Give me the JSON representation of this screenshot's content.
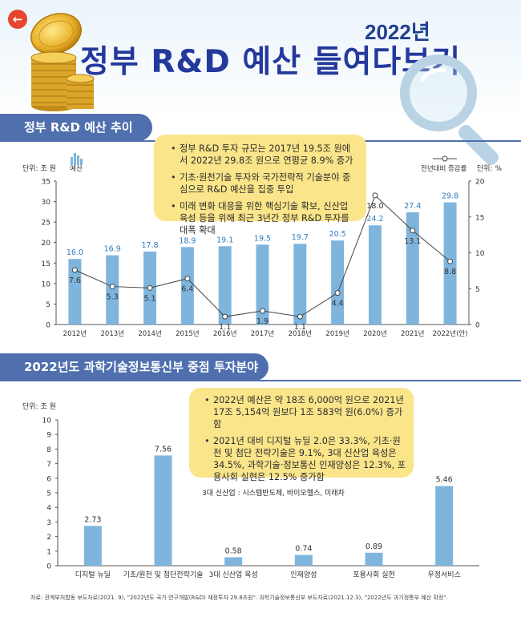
{
  "header": {
    "back_icon": "arrow-left-icon",
    "year_label": "2022년",
    "title": "정부 R&D 예산 들여다보기"
  },
  "section1": {
    "tab_label": "정부 R&D 예산 추이",
    "left_unit": "단위: 조 원",
    "right_unit": "단위: %",
    "bar_legend": "예산",
    "line_legend": "전년대비 증감률",
    "callout": [
      "정부 R&D 투자 규모는 2017년 19.5조 원에서 2022년 29.8조 원으로 연평균 8.9% 증가",
      "기초·원천기술 투자와 국가전략적 기술분야 중심으로 R&D 예산을 집중 투입",
      "미래 변화 대응을 위한 핵심기술 확보, 신산업 육성 등을 위해 최근 3년간 정부 R&D 투자를 대폭 확대"
    ]
  },
  "section2": {
    "tab_label": "2022년도 과학기술정보통신부 중점 투자분야",
    "unit": "단위: 조 원",
    "callout": [
      "2022년 예산은 약 18조 6,000억 원으로 2021년 17조 5,154억 원보다 1조 583억 원(6.0%) 증가함",
      "2021년 대비 디지털 뉴딜 2.0은 33.3%, 기초·원천 및 첨단 전략기술은 9.1%, 3대 신산업 육성은 34.5%, 과학기술·정보통신 인재양성은 12.3%, 포용사회 실현은 12.5% 증가함"
    ],
    "callout_note": "3대 신산업 : 시스템반도체, 바이오헬스, 미래차"
  },
  "source": "자료: 관계부처합동 보도자료(2021. 9), \"2022년도 국가 연구개발(R&D) 재정투자 29.8조원\". 과학기술정보통신부 보도자료(2021.12.3), \"2022년도 과기정통부 예산 확정\".",
  "colors": {
    "bar": "#7fb5dd",
    "line": "#444444",
    "title": "#24399b",
    "tab": "#4f6fae",
    "callout": "#fbe58a"
  },
  "chart_data": [
    {
      "type": "bar",
      "categories": [
        "2012년",
        "2013년",
        "2014년",
        "2015년",
        "2016년",
        "2017년",
        "2018년",
        "2019년",
        "2020년",
        "2021년",
        "2022년(안)"
      ],
      "series": [
        {
          "name": "예산",
          "type": "bar",
          "axis": "left",
          "values": [
            16.0,
            16.9,
            17.8,
            18.9,
            19.1,
            19.5,
            19.7,
            20.5,
            24.2,
            27.4,
            29.8
          ]
        },
        {
          "name": "전년대비 증감률",
          "type": "line",
          "axis": "right",
          "values": [
            7.6,
            5.3,
            5.1,
            6.4,
            1.1,
            1.9,
            1.1,
            4.4,
            18.0,
            13.1,
            8.8
          ]
        }
      ],
      "ylim": [
        0,
        35
      ],
      "yticks": [
        0,
        5,
        10,
        15,
        20,
        25,
        30,
        35
      ],
      "y2lim": [
        0,
        20
      ],
      "y2ticks": [
        0,
        5,
        10,
        15,
        20
      ],
      "ylabel": "단위: 조 원",
      "y2label": "단위: %"
    },
    {
      "type": "bar",
      "categories": [
        "디지털 뉴딜",
        "기초/원천 및 첨단전략기술",
        "3대 신산업 육성",
        "인재양성",
        "포용사회 실현",
        "우정서비스"
      ],
      "values": [
        2.73,
        7.56,
        0.58,
        0.74,
        0.89,
        5.46
      ],
      "ylim": [
        0,
        10
      ],
      "yticks": [
        0,
        1,
        2,
        3,
        4,
        5,
        6,
        7,
        8,
        9,
        10
      ],
      "ylabel": "단위: 조 원"
    }
  ]
}
